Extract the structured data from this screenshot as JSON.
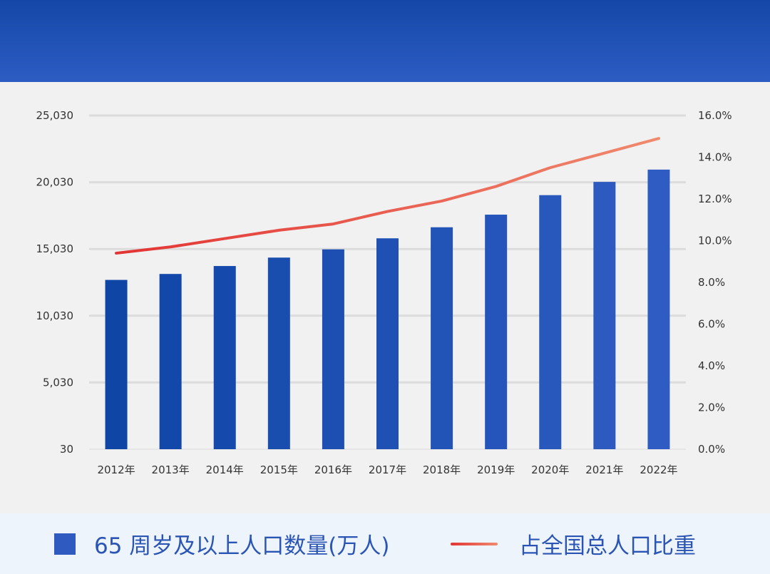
{
  "chart_data": {
    "type": "bar",
    "categories": [
      "2012年",
      "2013年",
      "2014年",
      "2015年",
      "2016年",
      "2017年",
      "2018年",
      "2019年",
      "2020年",
      "2021年",
      "2022年"
    ],
    "series": [
      {
        "name": "65 周岁及以上人口数量(万人)",
        "type": "bar",
        "axis": "left",
        "values": [
          12714,
          13161,
          13755,
          14386,
          15003,
          15831,
          16658,
          17603,
          19064,
          20056,
          20978
        ]
      },
      {
        "name": "占全国总人口比重",
        "type": "line",
        "axis": "right",
        "values": [
          9.4,
          9.7,
          10.1,
          10.5,
          10.8,
          11.4,
          11.9,
          12.6,
          13.5,
          14.2,
          14.9
        ]
      }
    ],
    "y_left": {
      "ticks": [
        "30",
        "5,030",
        "10,030",
        "15,030",
        "20,030",
        "25,030"
      ],
      "ylim": [
        30,
        25030
      ]
    },
    "y_right": {
      "ticks": [
        "0.0%",
        "2.0%",
        "4.0%",
        "6.0%",
        "8.0%",
        "10.0%",
        "12.0%",
        "14.0%",
        "16.0%"
      ],
      "ylim": [
        0,
        16
      ]
    },
    "grid": true,
    "legend_position": "bottom"
  },
  "legend": {
    "bar_label": "65 周岁及以上人口数量(万人)",
    "line_label": "占全国总人口比重"
  },
  "colors": {
    "bar_start": "#0f46a6",
    "bar_end": "#2f5cc2",
    "line_start": "#e23434",
    "line_end": "#f08a6e",
    "grid": "#dcdcdc"
  }
}
